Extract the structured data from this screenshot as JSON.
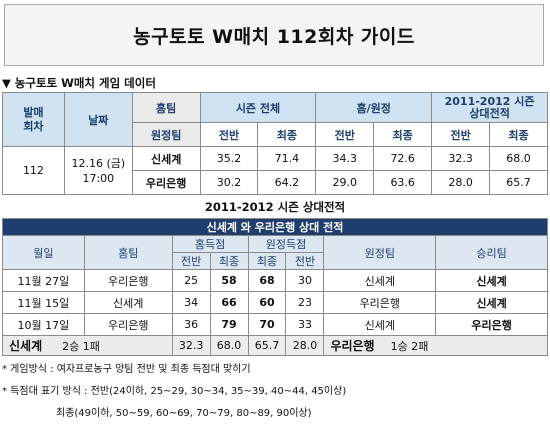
{
  "title": "농구토토 W매치 112회차 가이드",
  "game_data_heading": "▼ 농구토토 W매치 게임 데이터",
  "game_table": {
    "header_round": "발매\n회차",
    "header_date": "날짜",
    "header_home": "홈팀",
    "header_away": "원정팀",
    "header_season": "시즌 전체",
    "header_homeaway": "홈/원정",
    "header_h2h": "2011-2012 시즌\n상대전적",
    "label_first_half": "전반",
    "label_final": "최종",
    "round": "112",
    "date": "12.16 (금)",
    "time": "17:00",
    "home_team": {
      "name": "신세계",
      "season_first": "35.2",
      "season_final": "71.4",
      "ha_first": "34.3",
      "ha_final": "72.6",
      "h2h_first": "32.3",
      "h2h_final": "68.0"
    },
    "away_team": {
      "name": "우리은행",
      "season_first": "30.2",
      "season_final": "64.2",
      "ha_first": "29.0",
      "ha_final": "63.6",
      "h2h_first": "28.0",
      "h2h_final": "65.7"
    }
  },
  "h2h_heading": "2011-2012 시즌 상대전적",
  "h2h_table": {
    "banner": "신세계 와 우리은행 상대 전적",
    "col_date": "월일",
    "col_home": "홈팀",
    "col_home_score": "홈득점",
    "col_away_score": "원정득점",
    "col_away": "원정팀",
    "col_winner": "승리팀",
    "label_first_half": "전반",
    "label_final": "최종",
    "rows": [
      {
        "date": "11월 27일",
        "home": "우리은행",
        "home_first": "25",
        "home_final": "58",
        "away_final": "68",
        "away_first": "30",
        "away": "신세계",
        "winner": "신세계"
      },
      {
        "date": "11월 15일",
        "home": "신세계",
        "home_first": "34",
        "home_final": "66",
        "away_final": "60",
        "away_first": "23",
        "away": "우리은행",
        "winner": "신세계"
      },
      {
        "date": "10월 17일",
        "home": "우리은행",
        "home_first": "36",
        "home_final": "79",
        "away_final": "70",
        "away_first": "33",
        "away": "신세계",
        "winner": "우리은행"
      }
    ],
    "summary": {
      "team_left": "신세계",
      "record_left": "2승 1패",
      "v1": "32.3",
      "v2": "68.0",
      "v3": "65.7",
      "v4": "28.0",
      "team_right": "우리은행",
      "record_right": "1승 2패"
    }
  },
  "notes": {
    "line1": "* 게임방식 : 여자프로농구 양팀 전반 및 최종 득점대 맞히기",
    "line2": "* 득점대 표기 방식 : 전반(24이하, 25~29, 30~34, 35~39, 40~44, 45이상)",
    "line3": "최종(49이하, 50~59, 60~69, 70~79, 80~89, 90이상)"
  }
}
